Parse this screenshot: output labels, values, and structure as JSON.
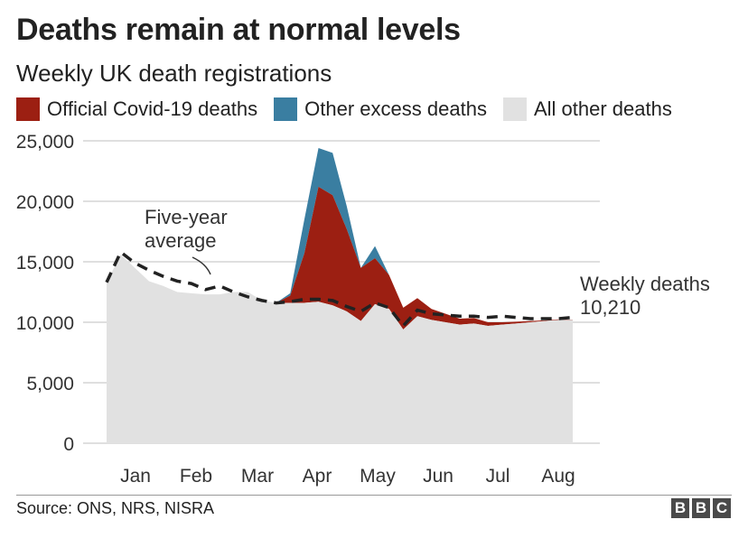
{
  "title": "Deaths remain at normal levels",
  "subtitle": "Weekly UK death registrations",
  "source": "Source: ONS, NRS, NISRA",
  "logo": [
    "B",
    "B",
    "C"
  ],
  "colors": {
    "covid": "#9c1f12",
    "excess": "#3a7ea1",
    "other": "#e1e1e1",
    "average": "#222222",
    "grid": "#cccccc"
  },
  "chart_data": {
    "type": "area",
    "categories": [
      "Jan",
      "Feb",
      "Mar",
      "Apr",
      "May",
      "Jun",
      "Jul",
      "Aug"
    ],
    "legend": [
      {
        "name": "Official Covid-19 deaths",
        "color": "#9c1f12"
      },
      {
        "name": "Other excess deaths",
        "color": "#3a7ea1"
      },
      {
        "name": "All other deaths",
        "color": "#e1e1e1"
      }
    ],
    "ylim": [
      0,
      25000
    ],
    "yticks": [
      0,
      5000,
      10000,
      15000,
      20000,
      25000
    ],
    "ytick_labels": [
      "0",
      "5,000",
      "10,000",
      "15,000",
      "20,000",
      "25,000"
    ],
    "x_week": [
      1,
      2,
      3,
      4,
      5,
      6,
      7,
      8,
      9,
      10,
      11,
      12,
      13,
      14,
      15,
      16,
      17,
      18,
      19,
      20,
      21,
      22,
      23,
      24,
      25,
      26,
      27,
      28,
      29,
      30,
      31,
      32,
      33,
      34
    ],
    "all_other_deaths": [
      13300,
      15600,
      14500,
      13400,
      13000,
      12500,
      12400,
      12300,
      12300,
      12500,
      12500,
      11800,
      11600,
      11600,
      11600,
      11700,
      11400,
      10900,
      10100,
      11500,
      11100,
      9400,
      10500,
      10200,
      10000,
      9800,
      9900,
      9700,
      9800,
      9900,
      10000,
      10100,
      10200,
      10200
    ],
    "covid_deaths": [
      0,
      0,
      0,
      0,
      0,
      0,
      0,
      0,
      0,
      0,
      0,
      0,
      0,
      600,
      4100,
      9500,
      9100,
      6800,
      4400,
      3800,
      2800,
      1800,
      1500,
      900,
      700,
      500,
      450,
      300,
      200,
      150,
      100,
      60,
      40,
      10
    ],
    "other_excess_deaths": [
      0,
      0,
      0,
      0,
      0,
      0,
      0,
      0,
      0,
      0,
      0,
      0,
      0,
      200,
      2800,
      3200,
      3500,
      1900,
      0,
      1000,
      0,
      0,
      0,
      0,
      0,
      0,
      0,
      0,
      0,
      0,
      0,
      0,
      0,
      0
    ],
    "five_year_average": [
      13300,
      15800,
      14900,
      14300,
      13800,
      13400,
      13200,
      12700,
      13000,
      12500,
      12100,
      11800,
      11600,
      11700,
      11900,
      11900,
      11800,
      11300,
      10900,
      11600,
      11200,
      9700,
      11000,
      10700,
      10600,
      10500,
      10500,
      10400,
      10500,
      10400,
      10300,
      10300,
      10300,
      10400
    ],
    "annotations": [
      {
        "text": [
          "Five-year",
          "average"
        ]
      },
      {
        "text": [
          "Weekly deaths",
          "10,210"
        ]
      }
    ],
    "grid": true,
    "legend_position": "top"
  }
}
